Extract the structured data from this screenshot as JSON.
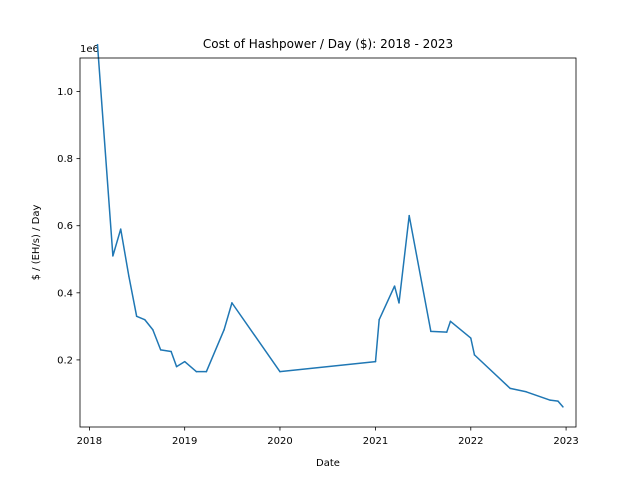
{
  "chart_data": {
    "type": "line",
    "title": "Cost of Hashpower / Day ($): 2018 - 2023",
    "xlabel": "Date",
    "ylabel": "$ / (EH/s) / Day",
    "y_multiplier_label": "1e6",
    "xlim": [
      "2017-11-26",
      "2023-02-08"
    ],
    "ylim": [
      0.0,
      1.1
    ],
    "grid": false,
    "legend": "none",
    "x_ticks": [
      "2018-01-01",
      "2019-01-01",
      "2020-01-01",
      "2021-01-01",
      "2022-01-01",
      "2023-01-01"
    ],
    "x_tick_labels": [
      "2018",
      "2019",
      "2020",
      "2021",
      "2022",
      "2023"
    ],
    "y_ticks": [
      0.2,
      0.4,
      0.6,
      0.8,
      1.0
    ],
    "y_tick_labels": [
      "0.2",
      "0.4",
      "0.6",
      "0.8",
      "1.0"
    ],
    "series": [
      {
        "color": "#1f77b4",
        "x": [
          "2018-02-01",
          "2018-04-01",
          "2018-05-01",
          "2018-06-01",
          "2018-07-01",
          "2018-08-01",
          "2018-09-01",
          "2018-10-01",
          "2018-11-10",
          "2018-12-01",
          "2019-01-01",
          "2019-02-15",
          "2019-03-25",
          "2019-06-01",
          "2019-07-01",
          "2020-01-01",
          "2021-01-01",
          "2021-01-15",
          "2021-03-15",
          "2021-04-01",
          "2021-05-10",
          "2021-08-01",
          "2021-10-01",
          "2021-10-15",
          "2022-01-01",
          "2022-01-15",
          "2022-06-01",
          "2022-08-01",
          "2022-11-01",
          "2022-12-01",
          "2022-12-20"
        ],
        "values": [
          1.14,
          0.51,
          0.59,
          0.45,
          0.33,
          0.32,
          0.29,
          0.23,
          0.225,
          0.18,
          0.195,
          0.165,
          0.165,
          0.29,
          0.37,
          0.165,
          0.195,
          0.32,
          0.42,
          0.37,
          0.63,
          0.285,
          0.283,
          0.315,
          0.265,
          0.215,
          0.115,
          0.105,
          0.08,
          0.077,
          0.06
        ]
      }
    ]
  }
}
